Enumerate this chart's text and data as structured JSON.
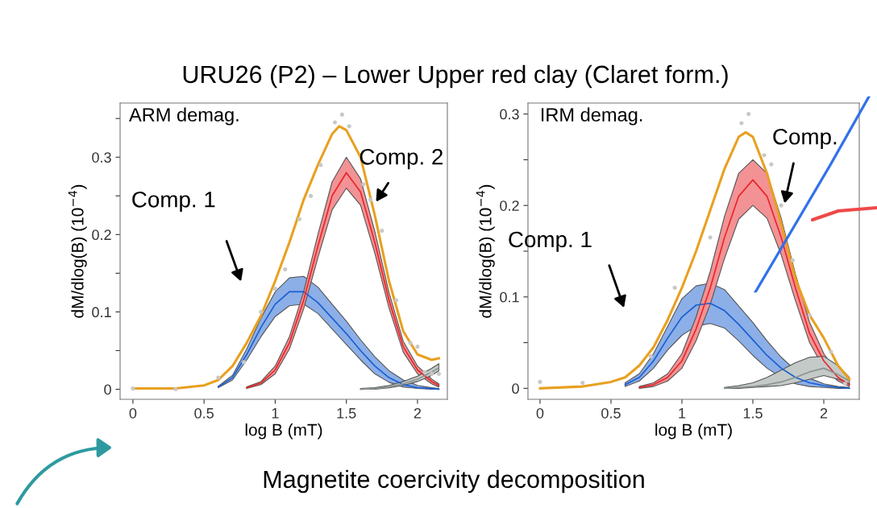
{
  "chart_data": [
    {
      "type": "line",
      "title": "URU26 (P2) – Lower Upper red clay (Claret form.)",
      "xlabel": "log B (mT)",
      "ylabel": "dM/dlog(B) (10$^{−4}$)",
      "annotations": [
        "ARM demag.",
        "Comp. 1",
        {
          "text": "Comp. 2",
          "x": 1.7,
          "y": 0.24
        },
        "Magnetite coercivity decomposition"
      ],
      "xlim": [
        -0.09,
        2.21
      ],
      "xticks": [
        0,
        0.5,
        1,
        1.5,
        2
      ],
      "ylim": [
        -0.013,
        0.37
      ],
      "yticks": [
        0,
        {
          "value": 0.05,
          "label": null
        },
        0.1,
        {
          "value": 0.15,
          "label": null
        },
        0.2,
        {
          "value": 0.25,
          "label": null
        },
        0.3,
        {
          "value": 0.35,
          "label": null
        }
      ],
      "grid": false,
      "series": [
        {
          "color": "#1a5fd0",
          "x": [
            0.6,
            0.7,
            0.8,
            0.9,
            1.0,
            1.1,
            1.2,
            1.3,
            1.4,
            1.5,
            1.6,
            1.7,
            1.8,
            1.9,
            2.0,
            2.1,
            2.15
          ],
          "values": [
            0.003,
            0.015,
            0.045,
            0.08,
            0.11,
            0.126,
            0.126,
            0.112,
            0.092,
            0.072,
            0.05,
            0.03,
            0.015,
            0.006,
            0.002,
            0.001,
            0.0
          ],
          "lower": [
            0.002,
            0.012,
            0.038,
            0.068,
            0.094,
            0.108,
            0.11,
            0.098,
            0.078,
            0.058,
            0.038,
            0.02,
            0.009,
            0.003,
            0.001,
            0.0,
            0.0
          ],
          "upper": [
            0.004,
            0.018,
            0.052,
            0.092,
            0.126,
            0.144,
            0.146,
            0.132,
            0.11,
            0.088,
            0.064,
            0.042,
            0.024,
            0.012,
            0.005,
            0.002,
            0.001
          ]
        },
        {
          "color": "#e8262a",
          "x": [
            0.8,
            0.9,
            1.0,
            1.1,
            1.2,
            1.3,
            1.4,
            1.5,
            1.6,
            1.7,
            1.8,
            1.9,
            2.0,
            2.1,
            2.15
          ],
          "values": [
            0.002,
            0.008,
            0.025,
            0.06,
            0.115,
            0.185,
            0.25,
            0.28,
            0.255,
            0.19,
            0.115,
            0.055,
            0.025,
            0.01,
            0.005
          ],
          "lower": [
            0.001,
            0.006,
            0.02,
            0.052,
            0.104,
            0.17,
            0.232,
            0.26,
            0.238,
            0.176,
            0.105,
            0.048,
            0.02,
            0.007,
            0.003
          ],
          "upper": [
            0.003,
            0.01,
            0.03,
            0.068,
            0.126,
            0.2,
            0.268,
            0.3,
            0.272,
            0.204,
            0.125,
            0.062,
            0.03,
            0.013,
            0.007
          ]
        },
        {
          "color": "#8a9490",
          "x": [
            1.6,
            1.7,
            1.8,
            1.9,
            2.0,
            2.1,
            2.15
          ],
          "values": [
            0.0,
            0.001,
            0.003,
            0.007,
            0.013,
            0.022,
            0.028
          ],
          "lower": [
            0.0,
            0.0,
            0.002,
            0.005,
            0.01,
            0.018,
            0.024
          ],
          "upper": [
            0.001,
            0.002,
            0.005,
            0.01,
            0.017,
            0.027,
            0.033
          ]
        },
        {
          "color": "#e8a020",
          "x": [
            0.0,
            0.3,
            0.5,
            0.6,
            0.7,
            0.8,
            0.9,
            1.0,
            1.1,
            1.2,
            1.3,
            1.4,
            1.45,
            1.5,
            1.6,
            1.7,
            1.8,
            1.9,
            2.0,
            2.1,
            2.15
          ],
          "values": [
            0.001,
            0.001,
            0.005,
            0.012,
            0.03,
            0.06,
            0.095,
            0.14,
            0.19,
            0.245,
            0.29,
            0.33,
            0.34,
            0.335,
            0.3,
            0.225,
            0.14,
            0.075,
            0.045,
            0.038,
            0.04
          ]
        },
        {
          "type": "scatter",
          "color": "#c8c8c8",
          "x": [
            0.0,
            0.3,
            0.6,
            0.78,
            0.9,
            1.0,
            1.07,
            1.17,
            1.25,
            1.32,
            1.42,
            1.47,
            1.52,
            1.62,
            1.67,
            1.75,
            1.85,
            1.95,
            2.0,
            2.05,
            2.1,
            2.15
          ],
          "values": [
            0.001,
            0.0,
            0.015,
            0.035,
            0.1,
            0.13,
            0.155,
            0.22,
            0.25,
            0.29,
            0.345,
            0.355,
            0.34,
            0.265,
            0.245,
            0.205,
            0.115,
            0.06,
            0.055,
            0.022,
            0.02,
            0.02
          ]
        }
      ]
    },
    {
      "type": "line",
      "xlabel": "log B (mT)",
      "ylabel": "dM/dlog(B) (10$^{−4}$)",
      "annotations": [
        "IRM demag.",
        "Comp. 1",
        {
          "text": "Comp.",
          "x": 1.72,
          "y": 0.2
        }
      ],
      "xlim": [
        -0.085,
        2.25
      ],
      "xticks": [
        0,
        0.5,
        1,
        1.5,
        2
      ],
      "ylim": [
        -0.012,
        0.312
      ],
      "yticks": [
        0,
        {
          "value": 0.05,
          "label": null
        },
        0.1,
        {
          "value": 0.15,
          "label": null
        },
        0.2,
        {
          "value": 0.25,
          "label": null
        },
        0.3
      ],
      "grid": false,
      "series": [
        {
          "color": "#1a5fd0",
          "x": [
            0.6,
            0.7,
            0.8,
            0.9,
            1.0,
            1.1,
            1.2,
            1.3,
            1.4,
            1.5,
            1.6,
            1.7,
            1.8,
            1.9,
            2.0,
            2.1,
            2.18
          ],
          "values": [
            0.004,
            0.012,
            0.03,
            0.055,
            0.078,
            0.091,
            0.093,
            0.085,
            0.07,
            0.053,
            0.036,
            0.022,
            0.012,
            0.006,
            0.003,
            0.001,
            0.0
          ],
          "lower": [
            0.002,
            0.008,
            0.022,
            0.042,
            0.058,
            0.068,
            0.071,
            0.066,
            0.052,
            0.036,
            0.022,
            0.012,
            0.005,
            0.002,
            0.001,
            0.0,
            0.0
          ],
          "upper": [
            0.006,
            0.016,
            0.038,
            0.068,
            0.098,
            0.112,
            0.115,
            0.108,
            0.09,
            0.072,
            0.052,
            0.034,
            0.02,
            0.011,
            0.005,
            0.002,
            0.001
          ]
        },
        {
          "color": "#e8262a",
          "x": [
            0.7,
            0.8,
            0.9,
            1.0,
            1.1,
            1.2,
            1.3,
            1.4,
            1.5,
            1.6,
            1.7,
            1.8,
            1.9,
            2.0,
            2.1,
            2.18
          ],
          "values": [
            0.001,
            0.004,
            0.012,
            0.03,
            0.065,
            0.11,
            0.165,
            0.21,
            0.228,
            0.21,
            0.165,
            0.11,
            0.06,
            0.03,
            0.012,
            0.004
          ],
          "lower": [
            0.0,
            0.002,
            0.008,
            0.022,
            0.052,
            0.092,
            0.142,
            0.185,
            0.2,
            0.186,
            0.146,
            0.096,
            0.05,
            0.022,
            0.008,
            0.002
          ],
          "upper": [
            0.002,
            0.006,
            0.016,
            0.038,
            0.078,
            0.128,
            0.188,
            0.235,
            0.25,
            0.235,
            0.186,
            0.125,
            0.072,
            0.038,
            0.016,
            0.006
          ]
        },
        {
          "color": "#8a9490",
          "x": [
            1.3,
            1.4,
            1.5,
            1.6,
            1.7,
            1.8,
            1.9,
            2.0,
            2.1,
            2.18
          ],
          "values": [
            0.0,
            0.001,
            0.002,
            0.004,
            0.007,
            0.012,
            0.018,
            0.022,
            0.015,
            0.008
          ],
          "lower": [
            0.0,
            0.0,
            0.001,
            0.002,
            0.003,
            0.006,
            0.01,
            0.014,
            0.01,
            0.005
          ],
          "upper": [
            0.001,
            0.003,
            0.006,
            0.012,
            0.02,
            0.028,
            0.034,
            0.035,
            0.025,
            0.012
          ]
        },
        {
          "color": "#e8a020",
          "x": [
            0.0,
            0.3,
            0.5,
            0.6,
            0.7,
            0.8,
            0.9,
            1.0,
            1.1,
            1.2,
            1.3,
            1.4,
            1.45,
            1.5,
            1.6,
            1.7,
            1.8,
            1.9,
            2.0,
            2.1,
            2.18
          ],
          "values": [
            0.0,
            0.002,
            0.007,
            0.012,
            0.025,
            0.045,
            0.075,
            0.11,
            0.15,
            0.195,
            0.24,
            0.275,
            0.28,
            0.275,
            0.235,
            0.18,
            0.12,
            0.08,
            0.055,
            0.025,
            0.01
          ]
        },
        {
          "type": "scatter",
          "color": "#c8c8c8",
          "x": [
            0.0,
            0.3,
            0.78,
            0.95,
            1.2,
            1.42,
            1.47,
            1.58,
            1.63,
            1.7,
            1.78,
            1.9,
            2.05,
            2.15
          ],
          "values": [
            0.007,
            0.006,
            0.035,
            0.11,
            0.165,
            0.29,
            0.3,
            0.255,
            0.245,
            0.2,
            0.14,
            0.08,
            0.04,
            0.005
          ]
        }
      ]
    }
  ]
}
